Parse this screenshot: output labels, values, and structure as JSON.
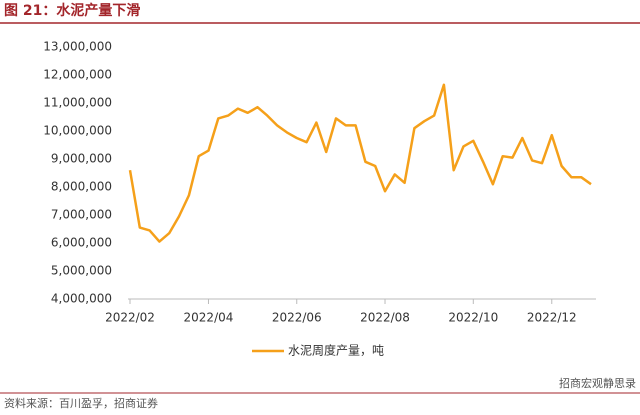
{
  "chart_data": {
    "type": "line",
    "title": "图 21：水泥产量下滑",
    "source": "资料来源：百川盈孚，招商证券",
    "watermark": "招商宏观静思录",
    "categories": [
      "2022/02",
      null,
      null,
      null,
      null,
      null,
      null,
      null,
      "2022/04",
      null,
      null,
      null,
      null,
      null,
      null,
      null,
      null,
      "2022/06",
      null,
      null,
      null,
      null,
      null,
      null,
      null,
      null,
      "2022/08",
      null,
      null,
      null,
      null,
      null,
      null,
      null,
      null,
      "2022/10",
      null,
      null,
      null,
      null,
      null,
      null,
      null,
      "2022/12",
      null,
      null,
      null,
      null
    ],
    "series": [
      {
        "name": "水泥周度产量，吨",
        "color": "#f5a01a",
        "values": [
          8600000,
          6550000,
          6450000,
          6050000,
          6350000,
          6950000,
          7700000,
          9100000,
          9300000,
          10450000,
          10550000,
          10800000,
          10650000,
          10850000,
          10550000,
          10200000,
          9950000,
          9750000,
          9600000,
          10300000,
          9250000,
          10450000,
          10200000,
          10200000,
          8900000,
          8750000,
          7850000,
          8450000,
          8150000,
          10100000,
          10350000,
          10550000,
          11650000,
          8600000,
          9450000,
          9650000,
          8900000,
          8100000,
          9100000,
          9050000,
          9750000,
          8950000,
          8850000,
          9850000,
          8750000,
          8350000,
          8350000,
          8100000
        ]
      }
    ],
    "ylim": [
      4000000,
      13000000
    ],
    "yticks": [
      {
        "value": 4000000,
        "label": "4,000,000"
      },
      {
        "value": 5000000,
        "label": "5,000,000"
      },
      {
        "value": 6000000,
        "label": "6,000,000"
      },
      {
        "value": 7000000,
        "label": "7,000,000"
      },
      {
        "value": 8000000,
        "label": "8,000,000"
      },
      {
        "value": 9000000,
        "label": "9,000,000"
      },
      {
        "value": 10000000,
        "label": "10,000,000"
      },
      {
        "value": 11000000,
        "label": "11,000,000"
      },
      {
        "value": 12000000,
        "label": "12,000,000"
      },
      {
        "value": 13000000,
        "label": "13,000,000"
      }
    ],
    "grid": false,
    "legend": "bottom"
  }
}
